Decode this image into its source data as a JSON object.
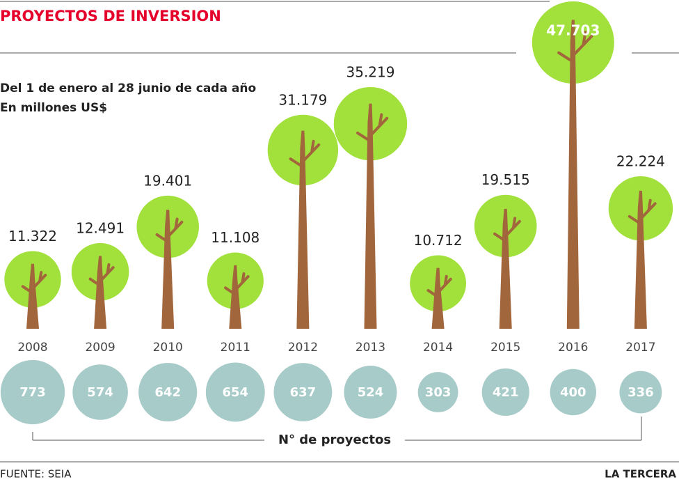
{
  "chart_data": {
    "type": "bar",
    "title": "PROYECTOS DE INVERSION",
    "subtitle": [
      "Del 1 de enero al 28 junio de cada año",
      "En millones US$"
    ],
    "categories": [
      "2008",
      "2009",
      "2010",
      "2011",
      "2012",
      "2013",
      "2014",
      "2015",
      "2016",
      "2017"
    ],
    "values": [
      11322,
      12491,
      19401,
      11108,
      31179,
      35219,
      10712,
      19515,
      47703,
      22224
    ],
    "value_labels": [
      "11.322",
      "12.491",
      "19.401",
      "11.108",
      "31.179",
      "35.219",
      "10.712",
      "19.515",
      "47.703",
      "22.224"
    ],
    "color": "#a2e03c",
    "trunk_color": "#a1663b",
    "projects": {
      "label": "N° de proyectos",
      "color": "#a7cbc8",
      "values": [
        773,
        574,
        642,
        654,
        637,
        524,
        303,
        421,
        400,
        336
      ]
    },
    "source": "FUENTE: SEIA",
    "brand": "LA TERCERA"
  }
}
